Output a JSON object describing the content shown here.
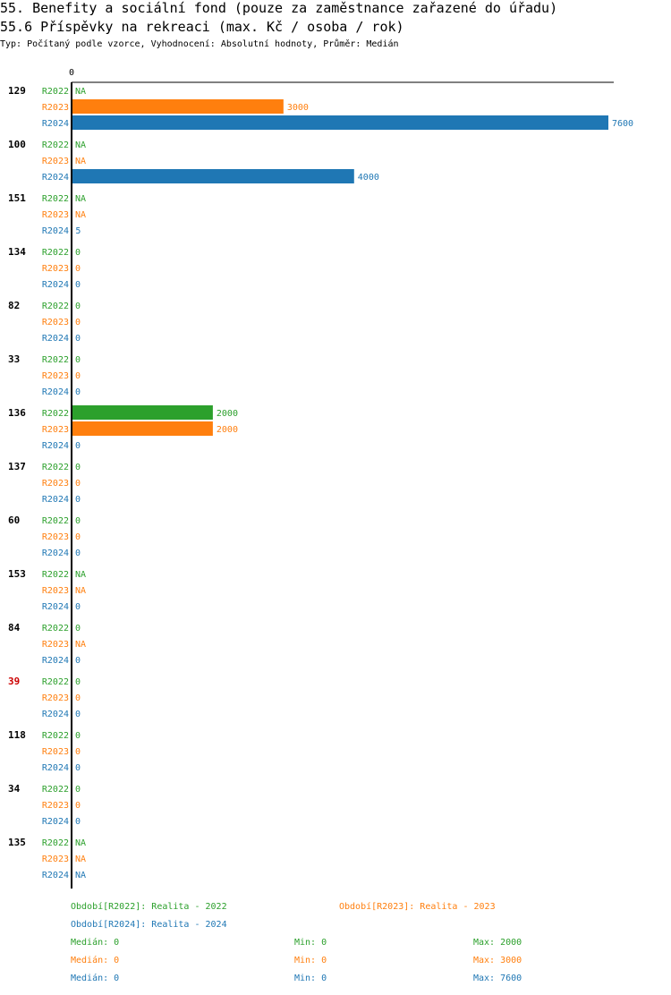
{
  "header": {
    "title": "55. Benefity a sociální fond (pouze za zaměstnance zařazené do úřadu)",
    "subtitle": "55.6 Příspěvky na rekreaci (max. Kč / osoba / rok)",
    "info": "Typ: Počítaný podle vzorce, Vyhodnocení: Absolutní hodnoty, Průměr: Medián"
  },
  "colors": {
    "R2022": "#2ca02c",
    "R2023": "#ff7f0e",
    "R2024": "#1f77b4",
    "highlight": "#cc0000"
  },
  "chart_data": {
    "type": "bar",
    "orientation": "horizontal",
    "x_tick_labels": [
      "0"
    ],
    "xlim": [
      0,
      7600
    ],
    "series_keys": [
      "R2022",
      "R2023",
      "R2024"
    ],
    "groups": [
      {
        "label": "129",
        "values": [
          "NA",
          3000,
          7600
        ]
      },
      {
        "label": "100",
        "values": [
          "NA",
          "NA",
          4000
        ]
      },
      {
        "label": "151",
        "values": [
          "NA",
          "NA",
          5
        ]
      },
      {
        "label": "134",
        "values": [
          0,
          0,
          0
        ]
      },
      {
        "label": "82",
        "values": [
          0,
          0,
          0
        ]
      },
      {
        "label": "33",
        "values": [
          0,
          0,
          0
        ]
      },
      {
        "label": "136",
        "values": [
          2000,
          2000,
          0
        ]
      },
      {
        "label": "137",
        "values": [
          0,
          0,
          0
        ]
      },
      {
        "label": "60",
        "values": [
          0,
          0,
          0
        ]
      },
      {
        "label": "153",
        "values": [
          "NA",
          "NA",
          0
        ]
      },
      {
        "label": "84",
        "values": [
          0,
          "NA",
          0
        ]
      },
      {
        "label": "39",
        "values": [
          0,
          0,
          0
        ],
        "highlight": true
      },
      {
        "label": "118",
        "values": [
          0,
          0,
          0
        ]
      },
      {
        "label": "34",
        "values": [
          0,
          0,
          0
        ]
      },
      {
        "label": "135",
        "values": [
          "NA",
          "NA",
          "NA"
        ]
      }
    ]
  },
  "legend": {
    "periods": [
      {
        "key": "R2022",
        "text": "Období[R2022]: Realita - 2022"
      },
      {
        "key": "R2023",
        "text": "Období[R2023]: Realita - 2023"
      },
      {
        "key": "R2024",
        "text": "Období[R2024]: Realita - 2024"
      }
    ],
    "stats": [
      {
        "key": "R2022",
        "median": "Medián: 0",
        "min": "Min: 0",
        "max": "Max: 2000"
      },
      {
        "key": "R2023",
        "median": "Medián: 0",
        "min": "Min: 0",
        "max": "Max: 3000"
      },
      {
        "key": "R2024",
        "median": "Medián: 0",
        "min": "Min: 0",
        "max": "Max: 7600"
      }
    ]
  }
}
